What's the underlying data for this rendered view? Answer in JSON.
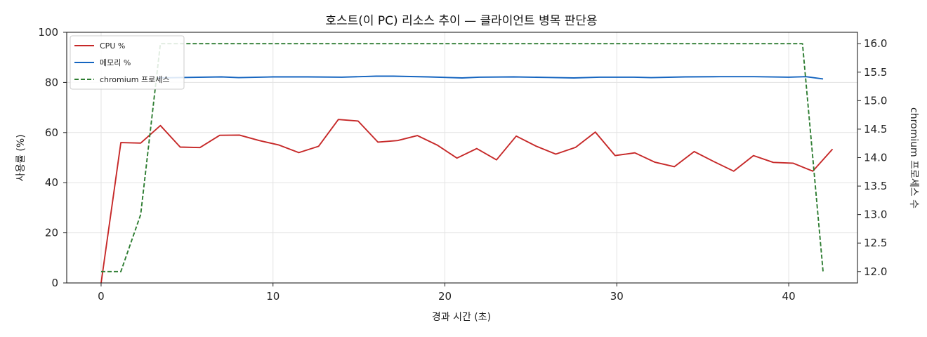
{
  "chart_data": {
    "type": "line",
    "title": "호스트(이 PC) 리소스 추이 — 클라이언트 병목 판단용",
    "xlabel": "경과 시간 (초)",
    "ylabel": "사용률 (%)",
    "y2label": "chromium 프로세스 수",
    "xlim": [
      -2,
      44
    ],
    "ylim": [
      0,
      100
    ],
    "y2lim": [
      11.8,
      16.2
    ],
    "xticks": [
      "0",
      "10",
      "20",
      "30",
      "40"
    ],
    "yticks": [
      "0",
      "20",
      "40",
      "60",
      "80",
      "100"
    ],
    "y2ticks": [
      "12.0",
      "12.5",
      "13.0",
      "13.5",
      "14.0",
      "14.5",
      "15.0",
      "15.5",
      "16.0"
    ],
    "grid": true,
    "legend_position": "top-left",
    "x": [
      0,
      1.16,
      2.32,
      3.48,
      4.64,
      5.8,
      6.96,
      8.12,
      9.28,
      10.44,
      11.6,
      12.76,
      13.92,
      15.08,
      16.24,
      17.4,
      18.56,
      19.72,
      20.88,
      22.04,
      23.2,
      24.36,
      25.52,
      26.68,
      27.84,
      29.0,
      30.16,
      31.32,
      32.48,
      33.64,
      34.8,
      35.96,
      37.12,
      38.28,
      39.44,
      40.6,
      41.76
    ],
    "series": [
      {
        "name": "CPU %",
        "axis": "left",
        "color": "#c62828",
        "style": "solid",
        "points": [
          [
            0,
            0
          ],
          [
            1.15,
            56
          ],
          [
            2.3,
            55.8
          ],
          [
            3.45,
            62.8
          ],
          [
            4.6,
            54.2
          ],
          [
            5.75,
            54
          ],
          [
            6.9,
            58.9
          ],
          [
            8.05,
            59
          ],
          [
            9.2,
            56.8
          ],
          [
            10.35,
            55
          ],
          [
            11.5,
            52
          ],
          [
            12.65,
            54.5
          ],
          [
            13.8,
            65.2
          ],
          [
            14.95,
            64.6
          ],
          [
            16.1,
            56.2
          ],
          [
            17.25,
            56.8
          ],
          [
            18.4,
            58.8
          ],
          [
            19.55,
            55
          ],
          [
            20.7,
            49.8
          ],
          [
            21.85,
            53.6
          ],
          [
            23,
            49.1
          ],
          [
            24.15,
            58.6
          ],
          [
            25.3,
            54.6
          ],
          [
            26.45,
            51.4
          ],
          [
            27.6,
            54.1
          ],
          [
            28.75,
            60.2
          ],
          [
            29.9,
            50.8
          ],
          [
            31.05,
            51.9
          ],
          [
            32.2,
            48.2
          ],
          [
            33.35,
            46.4
          ],
          [
            34.5,
            52.4
          ],
          [
            35.65,
            48.4
          ],
          [
            36.8,
            44.6
          ],
          [
            37.95,
            50.8
          ],
          [
            39.1,
            48.1
          ],
          [
            40.25,
            47.8
          ],
          [
            41.4,
            44.6
          ],
          [
            42.55,
            53.4
          ]
        ]
      },
      {
        "name": "메모리 %",
        "axis": "left",
        "color": "#1565c0",
        "style": "solid",
        "points": [
          [
            3.3,
            81.8
          ],
          [
            5,
            82
          ],
          [
            7,
            82.2
          ],
          [
            8,
            81.9
          ],
          [
            10,
            82.2
          ],
          [
            12,
            82.2
          ],
          [
            14,
            82.1
          ],
          [
            16,
            82.5
          ],
          [
            17,
            82.5
          ],
          [
            19,
            82.2
          ],
          [
            21,
            81.8
          ],
          [
            22,
            82.1
          ],
          [
            24,
            82.2
          ],
          [
            26,
            82
          ],
          [
            27.5,
            81.8
          ],
          [
            29,
            82.1
          ],
          [
            31,
            82.1
          ],
          [
            32,
            81.9
          ],
          [
            34,
            82.2
          ],
          [
            36,
            82.3
          ],
          [
            38,
            82.3
          ],
          [
            40,
            82.1
          ],
          [
            41,
            82.3
          ],
          [
            42,
            81.4
          ]
        ]
      },
      {
        "name": "chromium 프로세스",
        "axis": "right",
        "color": "#2e7d32",
        "style": "dashed",
        "points": [
          [
            0,
            12
          ],
          [
            1.15,
            12
          ],
          [
            2.3,
            13
          ],
          [
            3.45,
            16
          ],
          [
            40.8,
            16
          ],
          [
            42,
            12
          ]
        ]
      }
    ]
  }
}
